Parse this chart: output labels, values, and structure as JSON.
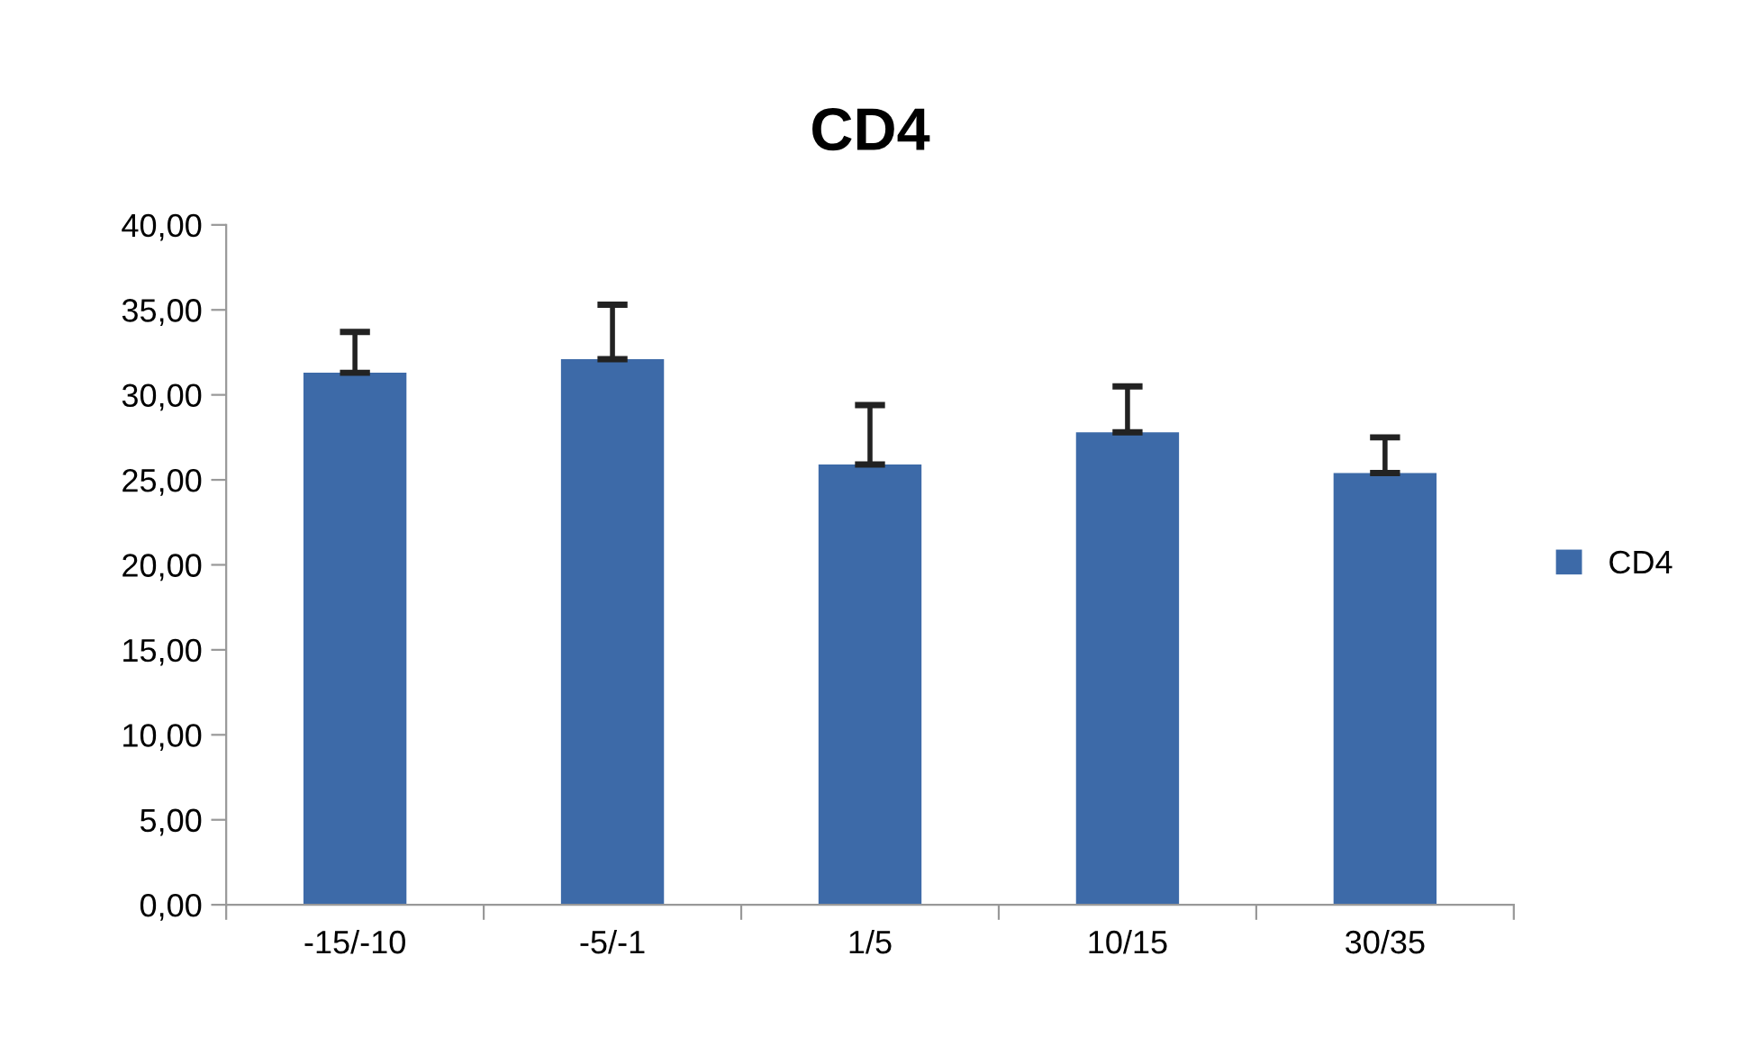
{
  "chart_data": {
    "type": "bar",
    "title": "CD4",
    "categories": [
      "-15/-10",
      "-5/-1",
      "1/5",
      "10/15",
      "30/35"
    ],
    "series": [
      {
        "name": "CD4",
        "color": "#3d6aa8",
        "values": [
          31.3,
          32.1,
          25.9,
          27.8,
          25.4
        ],
        "errors": [
          [
            31.3,
            33.7
          ],
          [
            32.1,
            35.3
          ],
          [
            25.9,
            29.4
          ],
          [
            27.8,
            30.5
          ],
          [
            25.4,
            27.5
          ]
        ]
      }
    ],
    "ylim": [
      0,
      40
    ],
    "yticks": [
      {
        "value": 0,
        "label": "0,00"
      },
      {
        "value": 5,
        "label": "5,00"
      },
      {
        "value": 10,
        "label": "10,00"
      },
      {
        "value": 15,
        "label": "15,00"
      },
      {
        "value": 20,
        "label": "20,00"
      },
      {
        "value": 25,
        "label": "25,00"
      },
      {
        "value": 30,
        "label": "30,00"
      },
      {
        "value": 35,
        "label": "35,00"
      },
      {
        "value": 40,
        "label": "40,00"
      }
    ],
    "grid": false,
    "legend": "right"
  }
}
